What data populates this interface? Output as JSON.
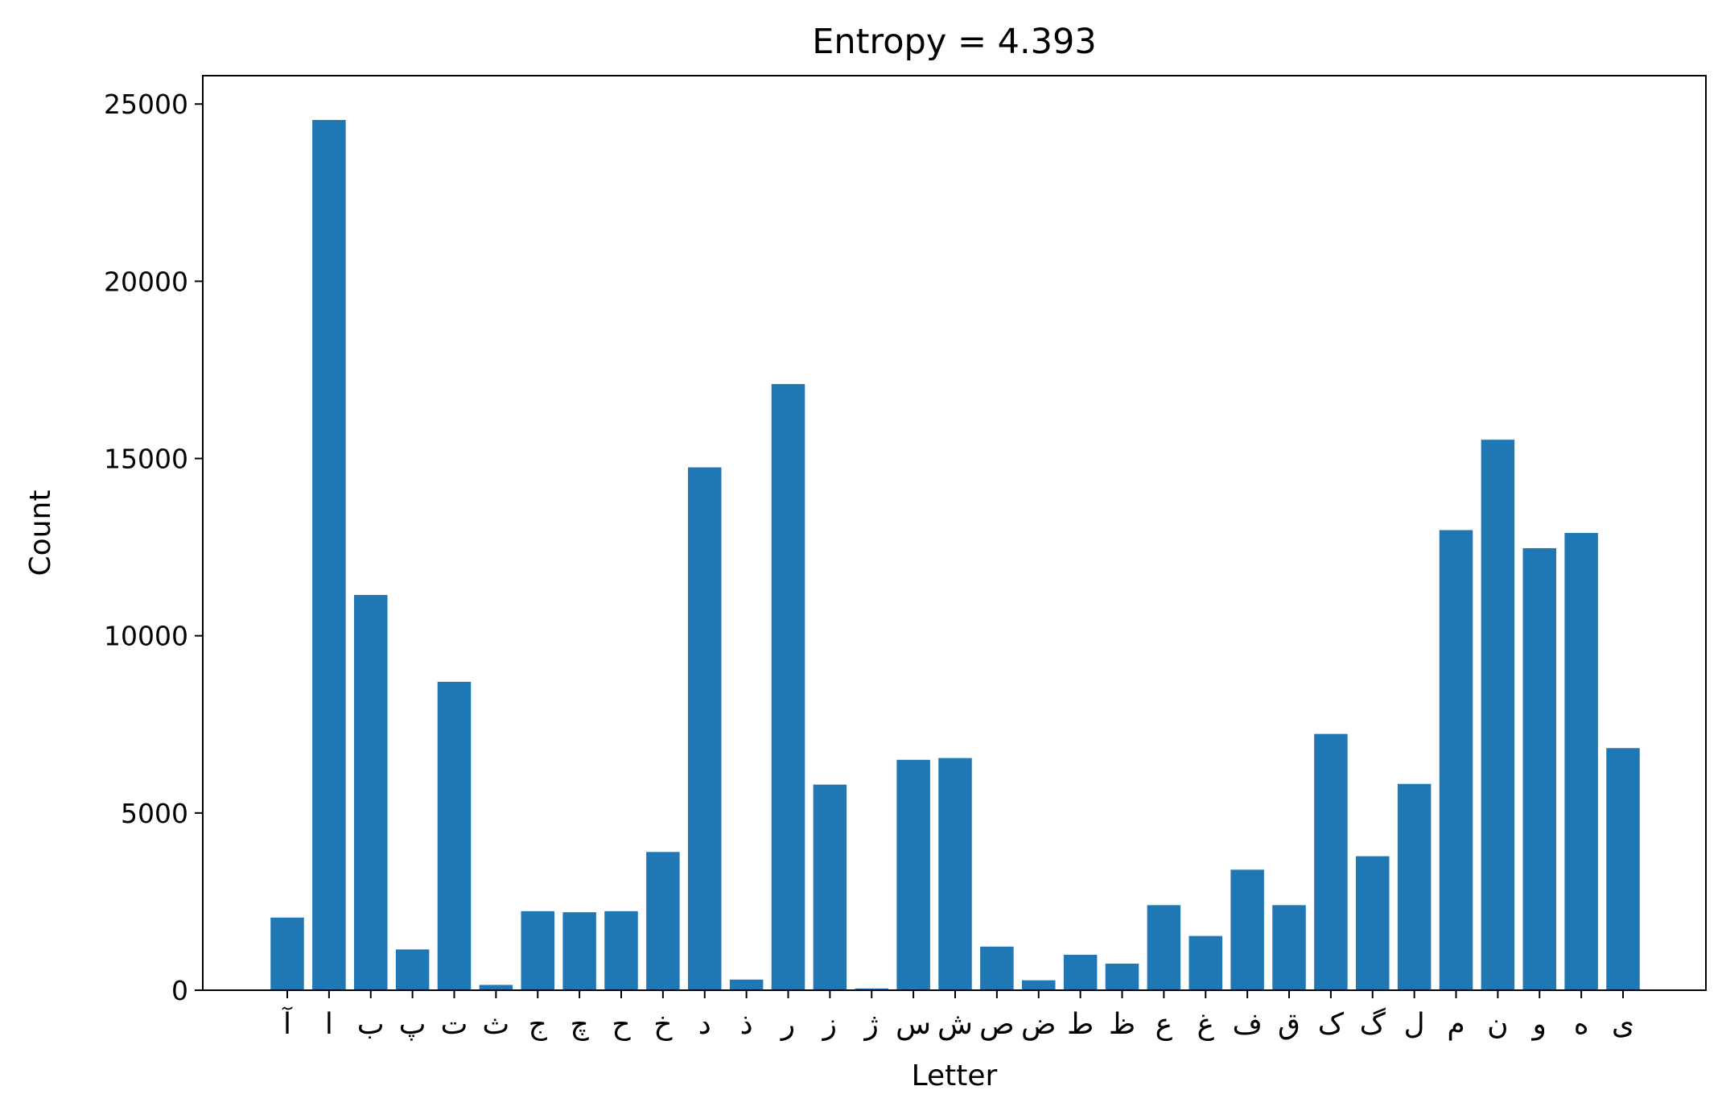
{
  "chart_data": {
    "type": "bar",
    "title": "Entropy = 4.393",
    "xlabel": "Letter",
    "ylabel": "Count",
    "ylim": [
      0,
      25800
    ],
    "yticks": [
      0,
      5000,
      10000,
      15000,
      20000,
      25000
    ],
    "ytick_labels": [
      "0",
      "5000",
      "10000",
      "15000",
      "20000",
      "25000"
    ],
    "grid": false,
    "bar_color": "#1f77b4",
    "categories": [
      "آ",
      "ا",
      "ب",
      "پ",
      "ت",
      "ث",
      "ج",
      "چ",
      "ح",
      "خ",
      "د",
      "ذ",
      "ر",
      "ز",
      "ژ",
      "س",
      "ش",
      "ص",
      "ض",
      "ط",
      "ظ",
      "ع",
      "غ",
      "ف",
      "ق",
      "ک",
      "گ",
      "ل",
      "م",
      "ن",
      "و",
      "ه",
      "ی"
    ],
    "values": [
      2050,
      24550,
      11150,
      1150,
      8700,
      150,
      2230,
      2200,
      2230,
      3900,
      14750,
      300,
      17100,
      5800,
      50,
      6500,
      6550,
      1230,
      280,
      1000,
      750,
      2400,
      1530,
      3400,
      2400,
      7230,
      3780,
      5820,
      12980,
      15530,
      12470,
      12900,
      6830
    ]
  }
}
